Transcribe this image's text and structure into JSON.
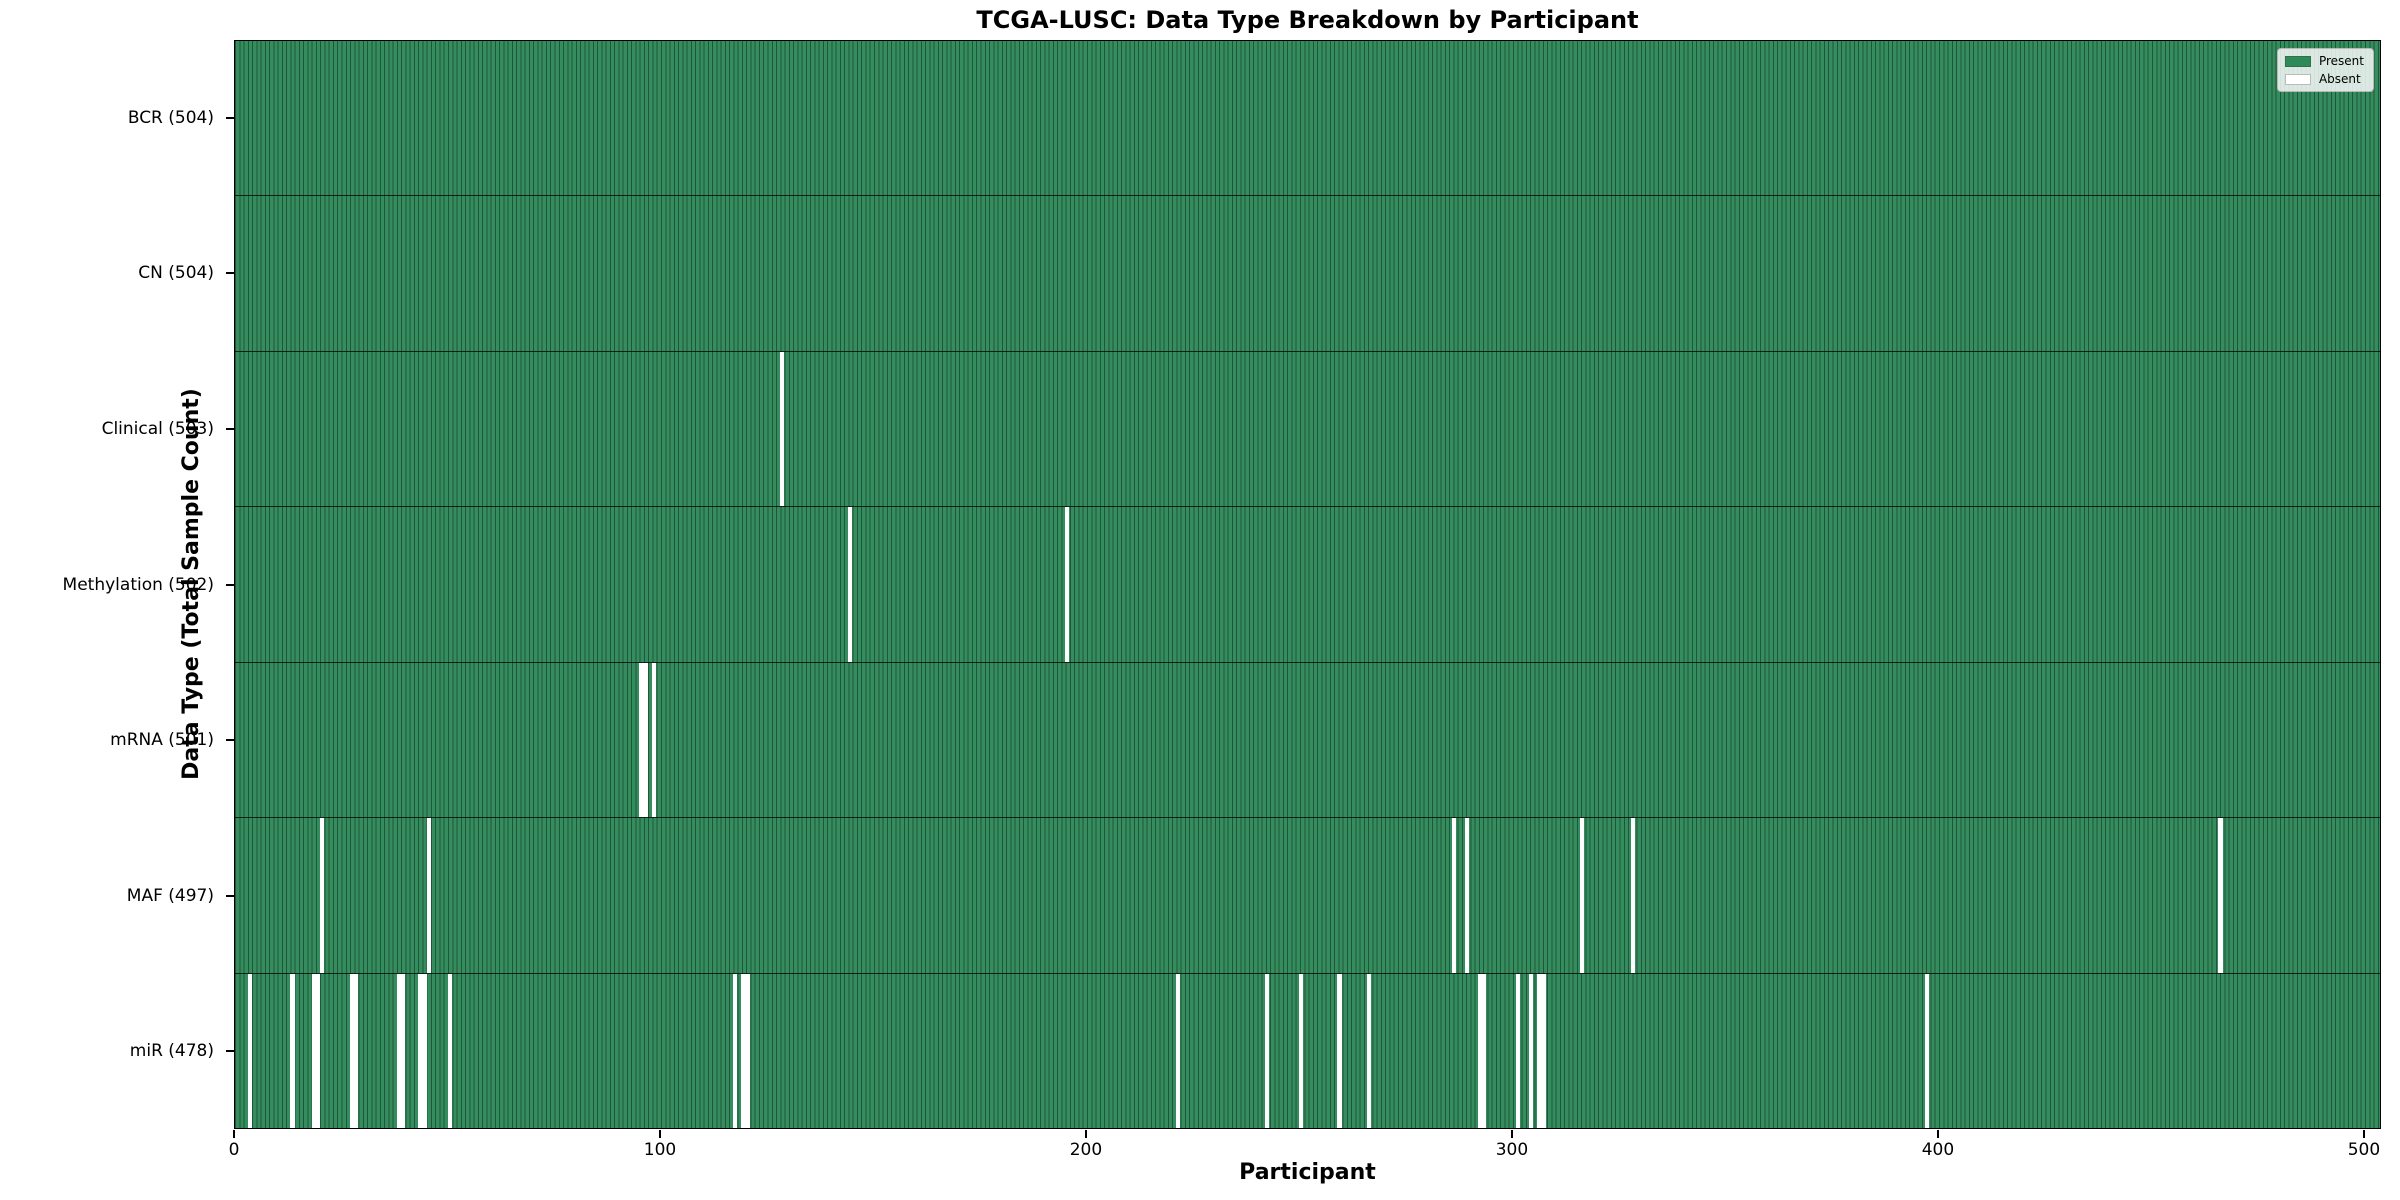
{
  "title": "TCGA-LUSC: Data Type Breakdown by Participant",
  "colors": {
    "present_fill": "#358c5e",
    "present_edge": "#1d5737",
    "absent": "#ffffff",
    "row_divider": "#000000"
  },
  "chart_data": {
    "type": "heatmap",
    "title": "TCGA-LUSC: Data Type Breakdown by Participant",
    "xlabel": "Participant",
    "ylabel": "Data Type (Total Sample Count)",
    "xlim": [
      0,
      504
    ],
    "x_ticks": [
      0,
      100,
      200,
      300,
      400,
      500
    ],
    "total_participants": 504,
    "grid": false,
    "legend_position": "upper right",
    "legend": [
      {
        "label": "Present",
        "color": "#2e8b57"
      },
      {
        "label": "Absent",
        "color": "#ffffff"
      }
    ],
    "rows": [
      {
        "label": "BCR (504)",
        "data_type": "BCR",
        "present_count": 504,
        "absent_participants": []
      },
      {
        "label": "CN (504)",
        "data_type": "CN",
        "present_count": 504,
        "absent_participants": []
      },
      {
        "label": "Clinical (503)",
        "data_type": "Clinical",
        "present_count": 503,
        "absent_participants": [
          128
        ]
      },
      {
        "label": "Methylation (502)",
        "data_type": "Methylation",
        "present_count": 502,
        "absent_participants": [
          144,
          195
        ]
      },
      {
        "label": "mRNA (501)",
        "data_type": "mRNA",
        "present_count": 501,
        "absent_participants": [
          95,
          96,
          98
        ]
      },
      {
        "label": "MAF (497)",
        "data_type": "MAF",
        "present_count": 497,
        "absent_participants": [
          20,
          45,
          286,
          289,
          316,
          328,
          466
        ]
      },
      {
        "label": "miR (478)",
        "data_type": "miR",
        "present_count": 478,
        "absent_participants": [
          3,
          13,
          18,
          19,
          27,
          28,
          38,
          39,
          43,
          44,
          50,
          117,
          119,
          120,
          221,
          242,
          250,
          259,
          266,
          292,
          293,
          301,
          304,
          306,
          307,
          397
        ]
      }
    ]
  }
}
